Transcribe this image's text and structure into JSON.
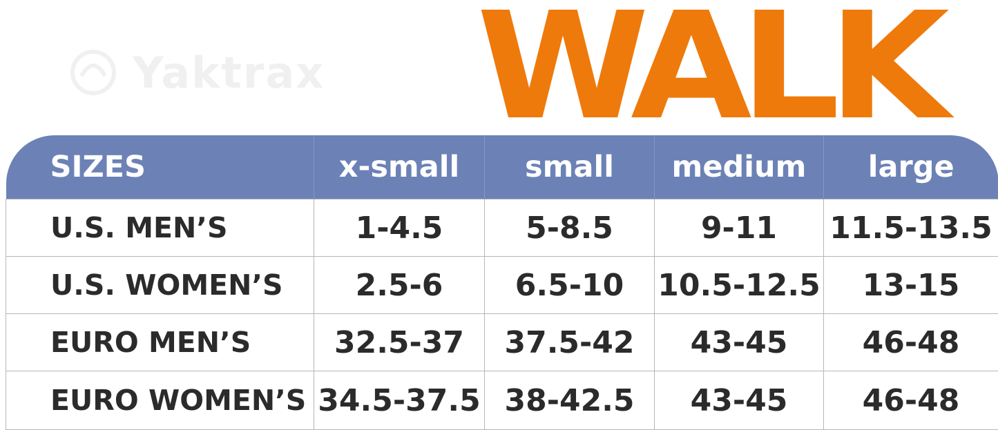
{
  "brand": {
    "logo_text": "Yaktrax"
  },
  "title": "WALK",
  "colors": {
    "title": "#ee7a0b",
    "header_bg": "#6c82b6",
    "text": "#2b2b2b"
  },
  "table": {
    "columns": [
      "SIZES",
      "x-small",
      "small",
      "medium",
      "large"
    ],
    "rows": [
      {
        "label": "U.S. MEN’S",
        "values": [
          "1-4.5",
          "5-8.5",
          "9-11",
          "11.5-13.5"
        ]
      },
      {
        "label": "U.S. WOMEN’S",
        "values": [
          "2.5-6",
          "6.5-10",
          "10.5-12.5",
          "13-15"
        ]
      },
      {
        "label": "EURO MEN’S",
        "values": [
          "32.5-37",
          "37.5-42",
          "43-45",
          "46-48"
        ]
      },
      {
        "label": "EURO WOMEN’S",
        "values": [
          "34.5-37.5",
          "38-42.5",
          "43-45",
          "46-48"
        ]
      }
    ]
  }
}
